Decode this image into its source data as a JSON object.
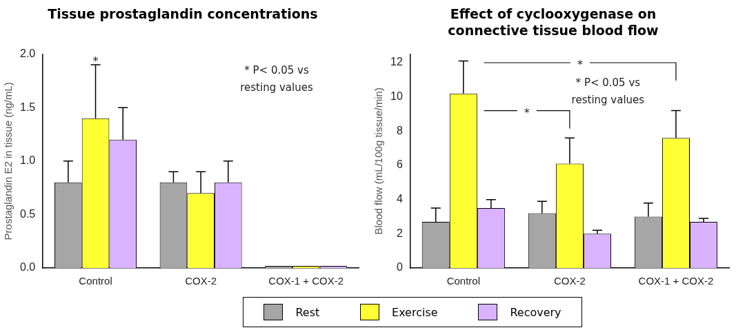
{
  "chart_data": [
    {
      "type": "bar",
      "title": "Tissue prostaglandin concentrations",
      "ylabel": "Prostaglandin E2 in tissue (ng/mL)",
      "categories": [
        "Control",
        "COX-2",
        "COX-1 + COX-2"
      ],
      "series": [
        {
          "name": "Rest",
          "color": "#a6a6a6",
          "values": [
            0.8,
            0.8,
            0.02
          ],
          "errors": [
            [
              0.8,
              1.0
            ],
            [
              0.8,
              0.9
            ],
            null
          ]
        },
        {
          "name": "Exercise",
          "color": "#ffff33",
          "values": [
            1.4,
            0.7,
            0.02
          ],
          "errors": [
            [
              1.4,
              1.9
            ],
            [
              0.7,
              0.9
            ],
            null
          ]
        },
        {
          "name": "Recovery",
          "color": "#d9b3ff",
          "values": [
            1.2,
            0.8,
            0.02
          ],
          "errors": [
            [
              1.2,
              1.5
            ],
            [
              0.8,
              1.0
            ],
            null
          ]
        }
      ],
      "ylim": [
        0,
        2
      ],
      "yticks": [
        {
          "value": 0,
          "label": "0.0"
        },
        {
          "value": 0.5,
          "label": "0.5"
        },
        {
          "value": 1,
          "label": "1.0"
        },
        {
          "value": 1.5,
          "label": "1.5"
        },
        {
          "value": 2,
          "label": "2.0"
        }
      ],
      "grid": false,
      "legend": "bottom",
      "annotations": [
        "*",
        "* P< 0.05 vs\nresting values"
      ]
    },
    {
      "type": "bar",
      "title": "Effect of cyclooxygenase on\nconnective tissue blood flow",
      "ylabel": "Blood flow (mL/100g tissue/min)",
      "categories": [
        "Control",
        "COX-2",
        "COX-1 + COX-2"
      ],
      "series": [
        {
          "name": "Rest",
          "color": "#a6a6a6",
          "values": [
            2.7,
            3.2,
            3.0
          ],
          "errors": [
            [
              2.7,
              3.5
            ],
            [
              3.2,
              3.9
            ],
            [
              3.0,
              3.8
            ]
          ]
        },
        {
          "name": "Exercise",
          "color": "#ffff33",
          "values": [
            10.2,
            6.1,
            7.6
          ],
          "errors": [
            [
              10.2,
              12.1
            ],
            [
              6.1,
              7.6
            ],
            [
              7.6,
              9.2
            ]
          ]
        },
        {
          "name": "Recovery",
          "color": "#d9b3ff",
          "values": [
            3.5,
            2.0,
            2.7
          ],
          "errors": [
            [
              3.5,
              4.0
            ],
            [
              2.0,
              2.2
            ],
            [
              2.7,
              2.9
            ]
          ]
        }
      ],
      "ylim": [
        0,
        12.5
      ],
      "yticks": [
        0,
        2,
        4,
        6,
        8,
        10,
        12
      ],
      "grid": false,
      "legend": "bottom",
      "annotations": [
        "*",
        "*",
        "* P< 0.05 vs\nresting values"
      ]
    }
  ]
}
